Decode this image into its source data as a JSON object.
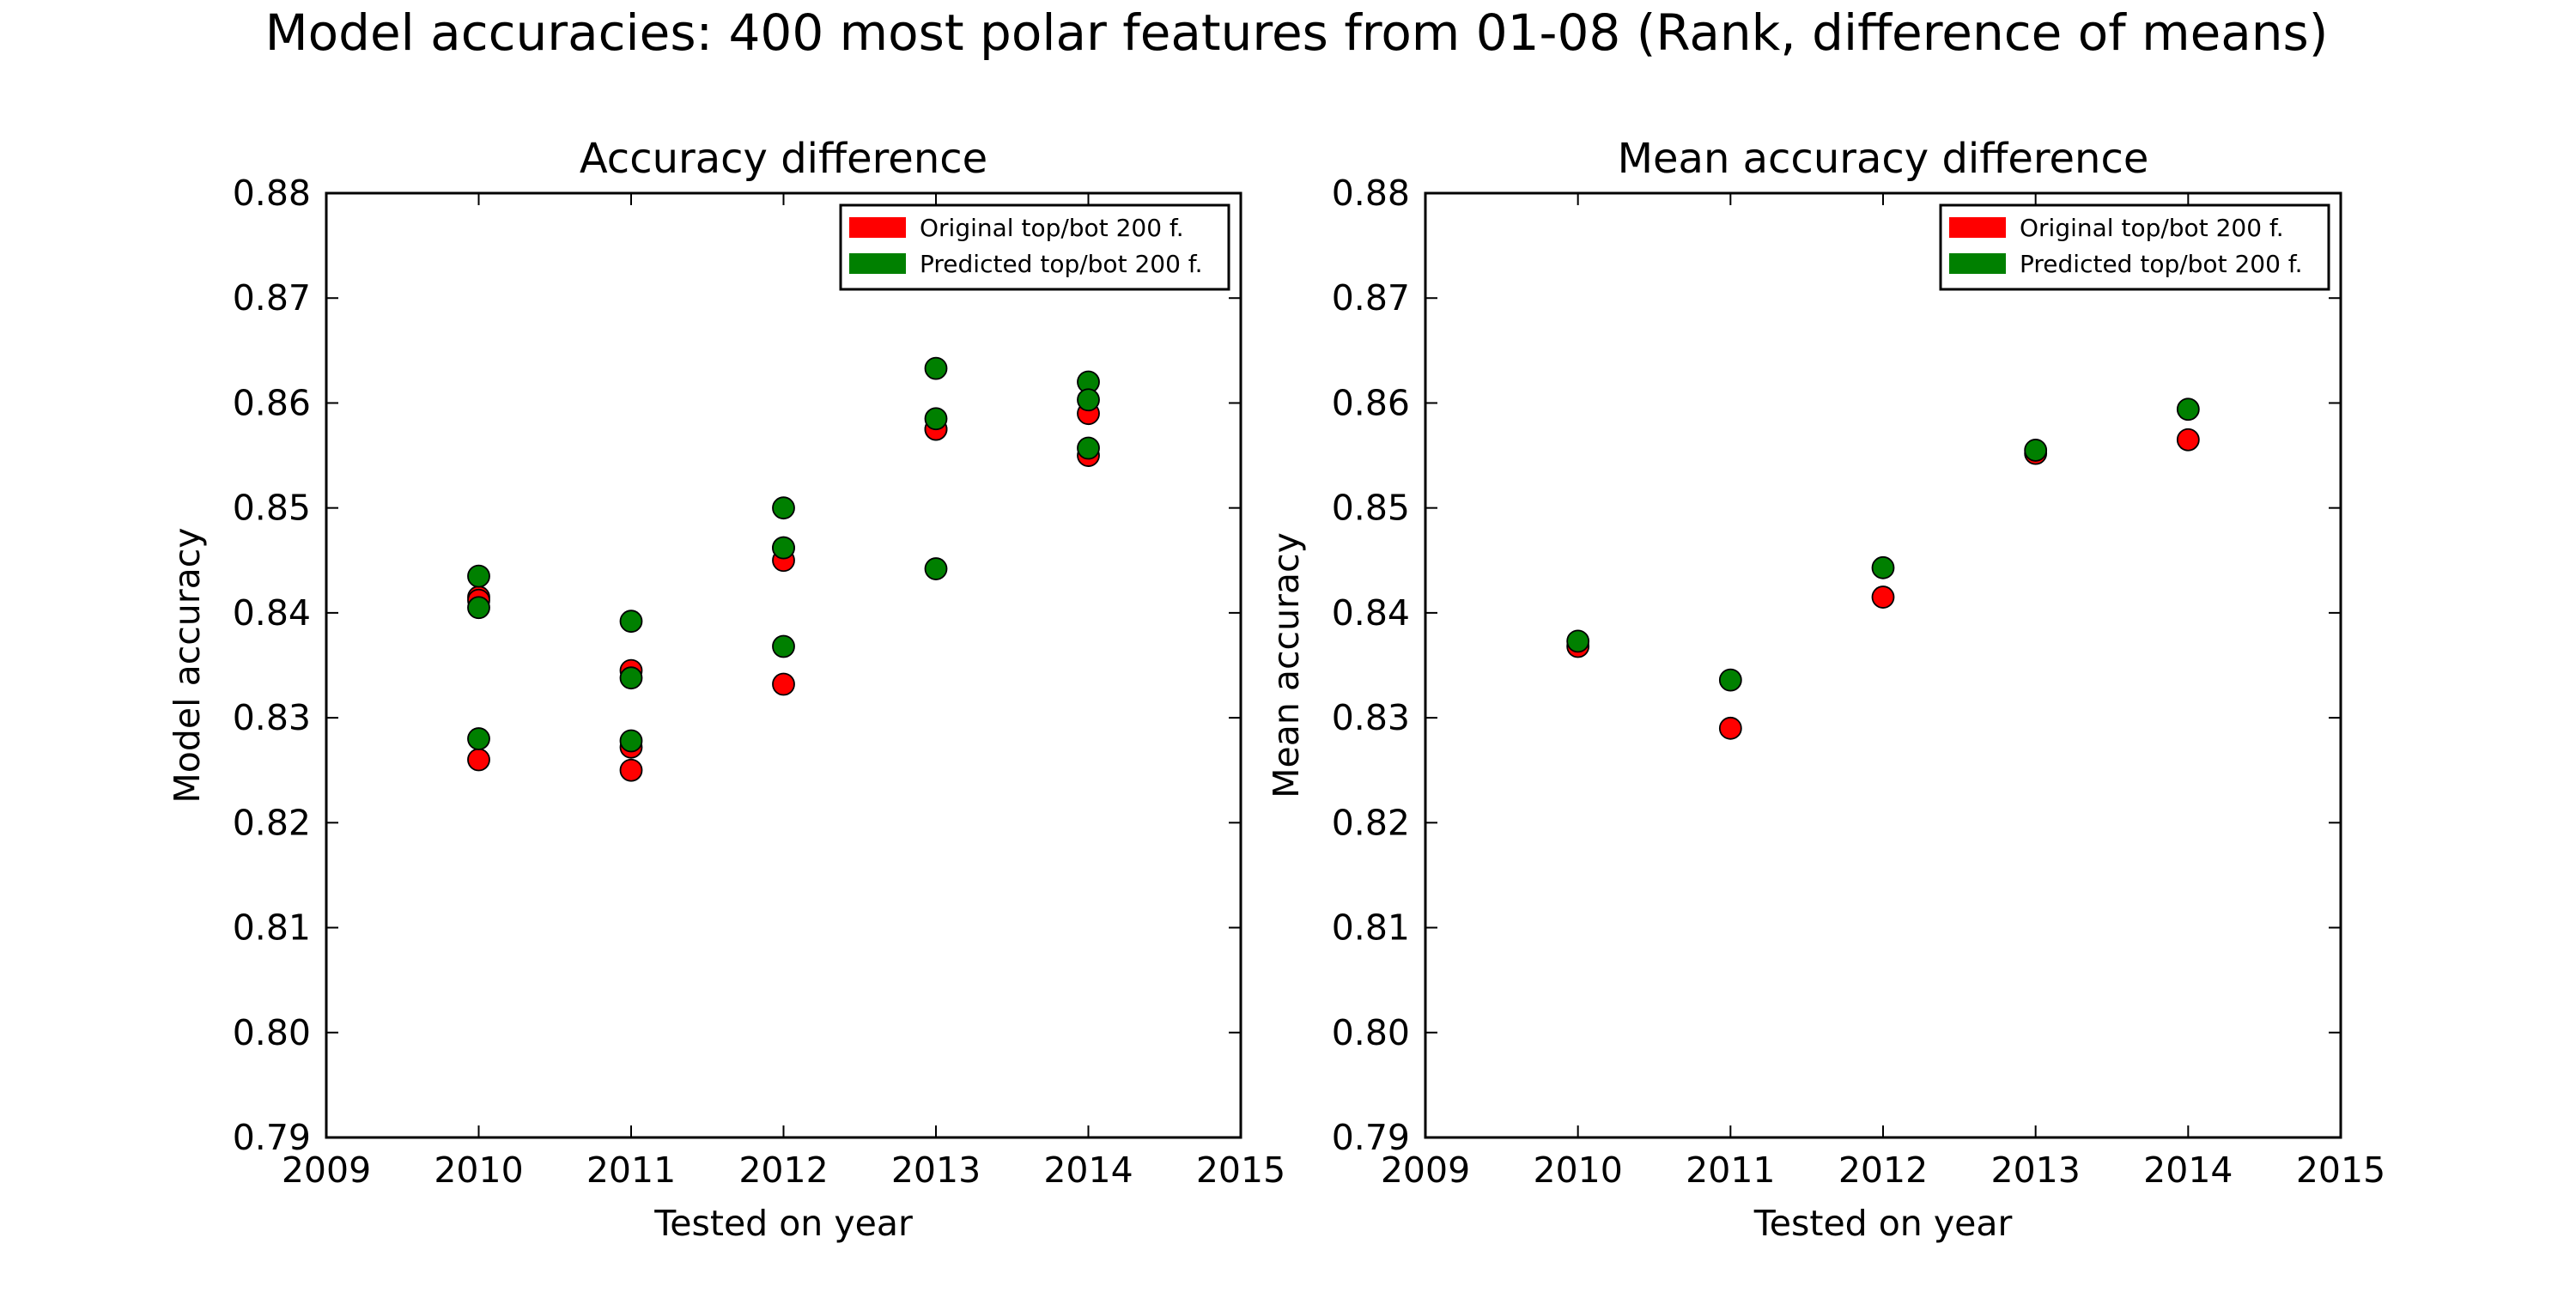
{
  "figure": {
    "suptitle": "Model accuracies: 400 most polar features from 01-08 (Rank, difference of means)"
  },
  "chart_data": [
    {
      "type": "scatter",
      "title": "Accuracy difference",
      "xlabel": "Tested on year",
      "ylabel": "Model accuracy",
      "xlim": [
        2009,
        2015
      ],
      "ylim": [
        0.79,
        0.88
      ],
      "xticks": [
        "2009",
        "2010",
        "2011",
        "2012",
        "2013",
        "2014",
        "2015"
      ],
      "yticks": [
        "0.79",
        "0.80",
        "0.81",
        "0.82",
        "0.83",
        "0.84",
        "0.85",
        "0.86",
        "0.87",
        "0.88"
      ],
      "grid": false,
      "legend_position": "top-right",
      "series": [
        {
          "name": "Original top/bot 200 f.",
          "color": "#ff0000",
          "points": [
            {
              "x": 2010,
              "y": 0.8415
            },
            {
              "x": 2010,
              "y": 0.8412
            },
            {
              "x": 2010,
              "y": 0.826
            },
            {
              "x": 2011,
              "y": 0.8345
            },
            {
              "x": 2011,
              "y": 0.8272
            },
            {
              "x": 2011,
              "y": 0.825
            },
            {
              "x": 2012,
              "y": 0.8462
            },
            {
              "x": 2012,
              "y": 0.845
            },
            {
              "x": 2012,
              "y": 0.8332
            },
            {
              "x": 2013,
              "y": 0.8575
            },
            {
              "x": 2013,
              "y": 0.8575
            },
            {
              "x": 2014,
              "y": 0.859
            },
            {
              "x": 2014,
              "y": 0.855
            }
          ]
        },
        {
          "name": "Predicted top/bot 200 f.",
          "color": "#008000",
          "points": [
            {
              "x": 2010,
              "y": 0.8435
            },
            {
              "x": 2010,
              "y": 0.8405
            },
            {
              "x": 2010,
              "y": 0.828
            },
            {
              "x": 2011,
              "y": 0.8392
            },
            {
              "x": 2011,
              "y": 0.8338
            },
            {
              "x": 2011,
              "y": 0.8278
            },
            {
              "x": 2012,
              "y": 0.85
            },
            {
              "x": 2012,
              "y": 0.8462
            },
            {
              "x": 2012,
              "y": 0.8368
            },
            {
              "x": 2013,
              "y": 0.8633
            },
            {
              "x": 2013,
              "y": 0.8585
            },
            {
              "x": 2013,
              "y": 0.8442
            },
            {
              "x": 2014,
              "y": 0.862
            },
            {
              "x": 2014,
              "y": 0.8603
            },
            {
              "x": 2014,
              "y": 0.8557
            }
          ]
        }
      ]
    },
    {
      "type": "scatter",
      "title": "Mean accuracy difference",
      "xlabel": "Tested on year",
      "ylabel": "Mean accuracy",
      "xlim": [
        2009,
        2015
      ],
      "ylim": [
        0.79,
        0.88
      ],
      "xticks": [
        "2009",
        "2010",
        "2011",
        "2012",
        "2013",
        "2014",
        "2015"
      ],
      "yticks": [
        "0.79",
        "0.80",
        "0.81",
        "0.82",
        "0.83",
        "0.84",
        "0.85",
        "0.86",
        "0.87",
        "0.88"
      ],
      "grid": false,
      "legend_position": "top-right",
      "series": [
        {
          "name": "Original top/bot 200 f.",
          "color": "#ff0000",
          "points": [
            {
              "x": 2010,
              "y": 0.8368
            },
            {
              "x": 2011,
              "y": 0.829
            },
            {
              "x": 2012,
              "y": 0.8415
            },
            {
              "x": 2013,
              "y": 0.8552
            },
            {
              "x": 2014,
              "y": 0.8565
            }
          ]
        },
        {
          "name": "Predicted top/bot 200 f.",
          "color": "#008000",
          "points": [
            {
              "x": 2010,
              "y": 0.8373
            },
            {
              "x": 2011,
              "y": 0.8336
            },
            {
              "x": 2012,
              "y": 0.8443
            },
            {
              "x": 2013,
              "y": 0.8555
            },
            {
              "x": 2014,
              "y": 0.8594
            }
          ]
        }
      ]
    }
  ]
}
